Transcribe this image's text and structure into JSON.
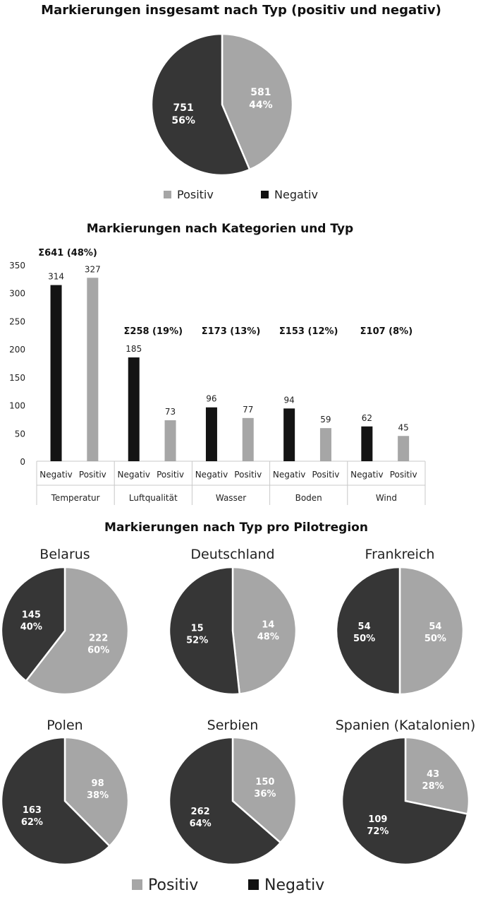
{
  "colors": {
    "positive": "#a6a6a6",
    "negative": "#363636",
    "axis": "#c8c8c8"
  },
  "chart_data": [
    {
      "type": "pie",
      "title": "Markierungen insgesamt nach Typ (positiv und negativ)",
      "slices": [
        {
          "name": "Positiv",
          "value": 581,
          "label_value": "581",
          "label_pct": "44%"
        },
        {
          "name": "Negativ",
          "value": 751,
          "label_value": "751",
          "label_pct": "56%"
        }
      ],
      "legend": [
        "Positiv",
        "Negativ"
      ],
      "legend_position": "bottom"
    },
    {
      "type": "bar",
      "title": "Markierungen nach Kategorien und Typ",
      "ylim": [
        0,
        350
      ],
      "yticks": [
        "0",
        "50",
        "100",
        "150",
        "200",
        "250",
        "300",
        "350"
      ],
      "grid": false,
      "groups": [
        {
          "category": "Temperatur",
          "sum_label": "Σ641 (48%)",
          "bars": [
            {
              "type": "Negativ",
              "value": 314
            },
            {
              "type": "Positiv",
              "value": 327
            }
          ]
        },
        {
          "category": "Luftqualität",
          "sum_label": "Σ258 (19%)",
          "bars": [
            {
              "type": "Negativ",
              "value": 185
            },
            {
              "type": "Positiv",
              "value": 73
            }
          ]
        },
        {
          "category": "Wasser",
          "sum_label": "Σ173 (13%)",
          "bars": [
            {
              "type": "Negativ",
              "value": 96
            },
            {
              "type": "Positiv",
              "value": 77
            }
          ]
        },
        {
          "category": "Boden",
          "sum_label": "Σ153 (12%)",
          "bars": [
            {
              "type": "Negativ",
              "value": 94
            },
            {
              "type": "Positiv",
              "value": 59
            }
          ]
        },
        {
          "category": "Wind",
          "sum_label": "Σ107 (8%)",
          "bars": [
            {
              "type": "Negativ",
              "value": 62
            },
            {
              "type": "Positiv",
              "value": 45
            }
          ]
        }
      ]
    },
    {
      "type": "pie",
      "title": "Markierungen nach Typ pro Pilotregion",
      "legend": [
        "Positiv",
        "Negativ"
      ],
      "legend_position": "bottom",
      "regions": [
        {
          "name": "Belarus",
          "positive": 222,
          "positive_pct": "60%",
          "negative": 145,
          "negative_pct": "40%"
        },
        {
          "name": "Deutschland",
          "positive": 14,
          "positive_pct": "48%",
          "negative": 15,
          "negative_pct": "52%"
        },
        {
          "name": "Frankreich",
          "positive": 54,
          "positive_pct": "50%",
          "negative": 54,
          "negative_pct": "50%"
        },
        {
          "name": "Polen",
          "positive": 98,
          "positive_pct": "38%",
          "negative": 163,
          "negative_pct": "62%"
        },
        {
          "name": "Serbien",
          "positive": 150,
          "positive_pct": "36%",
          "negative": 262,
          "negative_pct": "64%"
        },
        {
          "name": "Spanien (Katalonien)",
          "positive": 43,
          "positive_pct": "28%",
          "negative": 109,
          "negative_pct": "72%"
        }
      ]
    }
  ]
}
